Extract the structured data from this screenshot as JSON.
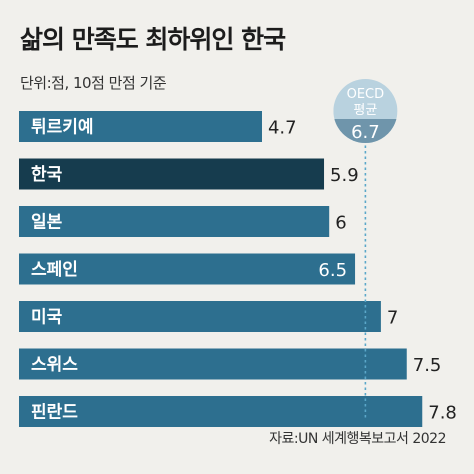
{
  "title": "삶의 만족도 최하위인 한국",
  "unit_note": "단위:점, 10점 만점 기준",
  "source": "자료:UN 세계행복보고서 2022",
  "colors": {
    "bar": "#2d6f8f",
    "highlight_bar": "#163c4e",
    "avg_line": "#5aa7c9",
    "avg_badge_top": "#b9d2df",
    "avg_badge_bottom": "#6f95ab",
    "background": "#f1f0ec"
  },
  "chart_data": {
    "type": "bar",
    "orientation": "horizontal",
    "categories": [
      "튀르키예",
      "한국",
      "일본",
      "스페인",
      "미국",
      "스위스",
      "핀란드"
    ],
    "values": [
      4.7,
      5.9,
      6,
      6.5,
      7,
      7.5,
      7.8
    ],
    "value_labels": [
      "4.7",
      "5.9",
      "6",
      "6.5",
      "7",
      "7.5",
      "7.8"
    ],
    "highlight": "한국",
    "reference_line": {
      "label_line1": "OECD",
      "label_line2": "평균",
      "value": 6.7,
      "value_label": "6.7"
    }
  }
}
